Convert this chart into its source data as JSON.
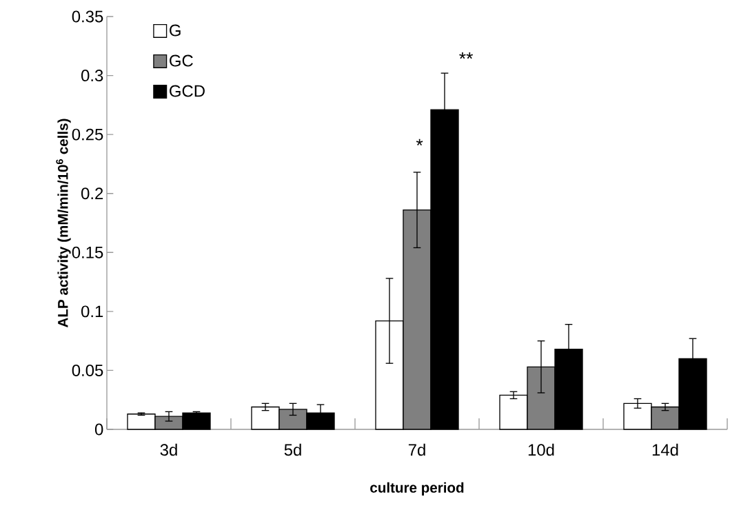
{
  "chart_data": {
    "type": "bar",
    "xlabel": "culture period",
    "ylabel": "ALP activity (mM/min/10$^{6}$ cells)",
    "categories": [
      "3d",
      "5d",
      "7d",
      "10d",
      "14d"
    ],
    "series": [
      {
        "name": "G",
        "color": "#ffffff",
        "values": [
          0.013,
          0.019,
          0.092,
          0.029,
          0.022
        ],
        "errors": [
          0.001,
          0.003,
          0.036,
          0.003,
          0.004
        ]
      },
      {
        "name": "GC",
        "color": "#808080",
        "values": [
          0.011,
          0.017,
          0.186,
          0.053,
          0.019
        ],
        "errors": [
          0.004,
          0.005,
          0.032,
          0.022,
          0.003
        ]
      },
      {
        "name": "GCD",
        "color": "#000000",
        "values": [
          0.014,
          0.014,
          0.271,
          0.068,
          0.06
        ],
        "errors": [
          0.001,
          0.007,
          0.031,
          0.021,
          0.017
        ]
      }
    ],
    "ylim": [
      0,
      0.35
    ],
    "yticks": [
      0,
      0.05,
      0.1,
      0.15,
      0.2,
      0.25,
      0.3,
      0.35
    ],
    "annotations": [
      "*",
      "**"
    ],
    "legend": "top left",
    "grid": false
  }
}
